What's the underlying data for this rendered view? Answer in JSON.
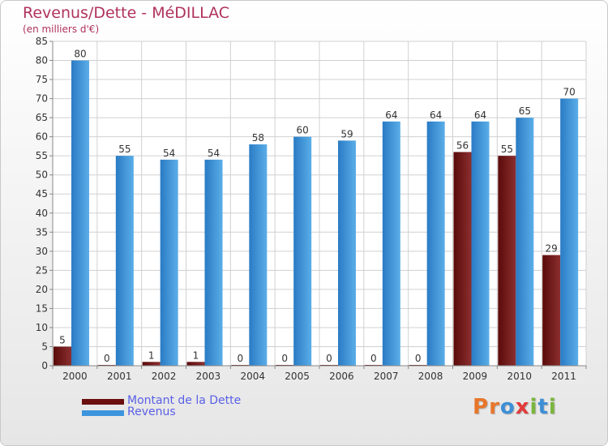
{
  "header": {
    "title": "Revenus/Dette - MéDILLAC",
    "subtitle": "(en milliers d'€)"
  },
  "legend": {
    "items": [
      {
        "label": "Montant de la Dette",
        "color": "#6b0e0e"
      },
      {
        "label": "Revenus",
        "color": "#3d95dd"
      }
    ]
  },
  "logo": {
    "text": "Proxiti",
    "letter_colors": [
      "#e8762b",
      "#e8762b",
      "#3d8fd6",
      "#e23b3b",
      "#7ab63c",
      "#3d8fd6",
      "#7ab63c"
    ]
  },
  "colors": {
    "title": "#b0325d",
    "debt_dark": "#5a0a0a",
    "debt_light": "#8b2f2f",
    "revenue_dark": "#2a7bc4",
    "revenue_light": "#5aaee8"
  },
  "chart_data": {
    "type": "bar",
    "title": "Revenus/Dette - MéDILLAC",
    "subtitle": "(en milliers d'€)",
    "categories": [
      "2000",
      "2001",
      "2002",
      "2003",
      "2004",
      "2005",
      "2006",
      "2007",
      "2008",
      "2009",
      "2010",
      "2011"
    ],
    "series": [
      {
        "name": "Montant de la Dette",
        "values": [
          5,
          0,
          1,
          1,
          0,
          0,
          0,
          0,
          0,
          56,
          55,
          29
        ]
      },
      {
        "name": "Revenus",
        "values": [
          80,
          55,
          54,
          54,
          58,
          60,
          59,
          64,
          64,
          64,
          65,
          70
        ]
      }
    ],
    "ylim": [
      0,
      85
    ],
    "yticks": [
      0,
      5,
      10,
      15,
      20,
      25,
      30,
      35,
      40,
      45,
      50,
      55,
      60,
      65,
      70,
      75,
      80,
      85
    ],
    "grid": true,
    "legend_position": "bottom-left"
  }
}
